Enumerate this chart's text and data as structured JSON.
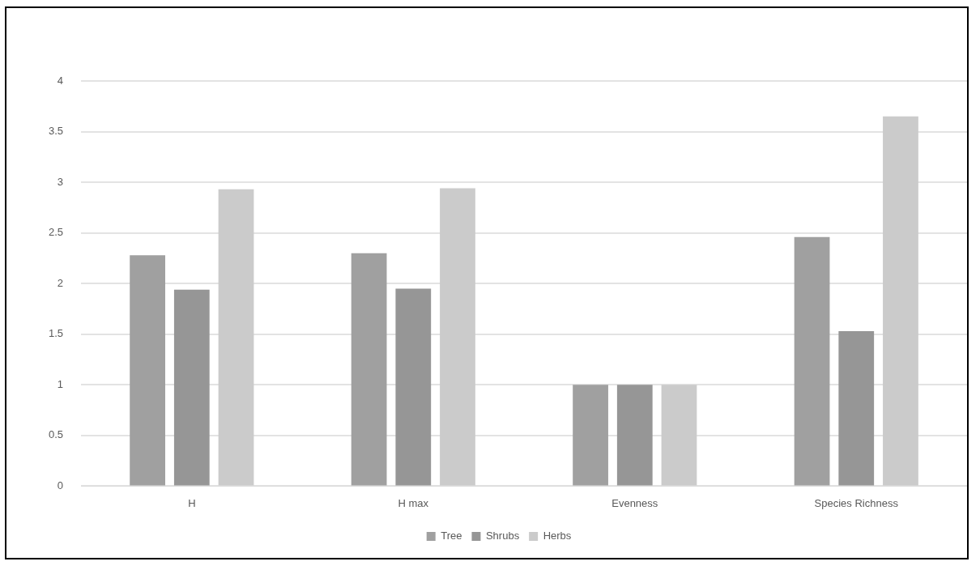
{
  "chart_data": {
    "type": "bar",
    "categories": [
      "H",
      "H max",
      "Evenness",
      "Species Richness"
    ],
    "series": [
      {
        "name": "Tree",
        "color": "#a0a0a0",
        "values": [
          2.28,
          2.3,
          1.0,
          2.46
        ]
      },
      {
        "name": "Shrubs",
        "color": "#969696",
        "values": [
          1.94,
          1.95,
          1.0,
          1.53
        ]
      },
      {
        "name": "Herbs",
        "color": "#cbcbcb",
        "values": [
          2.93,
          2.94,
          1.0,
          3.65
        ]
      }
    ],
    "ylim": [
      0,
      4
    ],
    "yticks": [
      0,
      0.5,
      1,
      1.5,
      2,
      2.5,
      3,
      3.5,
      4
    ],
    "grid": "y",
    "legend": "bottom"
  }
}
